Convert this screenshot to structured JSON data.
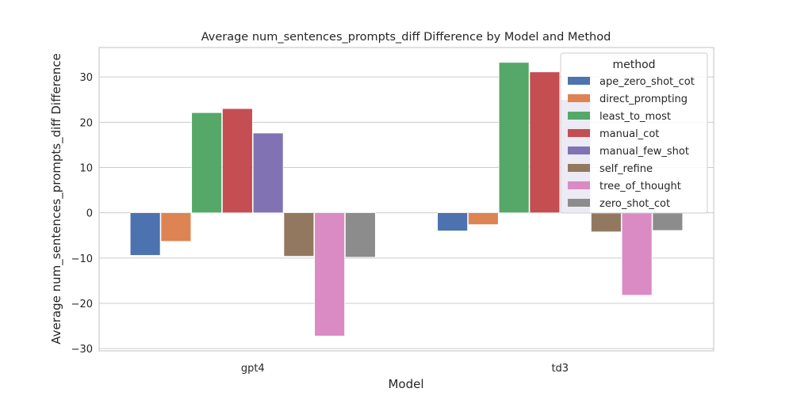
{
  "chart_data": {
    "type": "bar",
    "title": "Average num_sentences_prompts_diff Difference by Model and Method",
    "xlabel": "Model",
    "ylabel": "Average num_sentences_prompts_diff Difference",
    "categories": [
      "gpt4",
      "td3"
    ],
    "ylim": [
      -30.5,
      36.5
    ],
    "yticks": [
      -30,
      -20,
      -10,
      0,
      10,
      20,
      30
    ],
    "grid": true,
    "legend": {
      "title": "method",
      "placement": "top-right"
    },
    "series": [
      {
        "name": "ape_zero_shot_cot",
        "color": "#4c72b0",
        "values": [
          -9.4,
          -4.0
        ]
      },
      {
        "name": "direct_prompting",
        "color": "#dd8452",
        "values": [
          -6.3,
          -2.6
        ]
      },
      {
        "name": "least_to_most",
        "color": "#55a868",
        "values": [
          22.1,
          33.2
        ]
      },
      {
        "name": "manual_cot",
        "color": "#c44e52",
        "values": [
          23.0,
          31.1
        ]
      },
      {
        "name": "manual_few_shot",
        "color": "#8172b3",
        "values": [
          17.6,
          25.0
        ]
      },
      {
        "name": "self_refine",
        "color": "#937860",
        "values": [
          -9.6,
          -4.2
        ]
      },
      {
        "name": "tree_of_thought",
        "color": "#da8bc3",
        "values": [
          -27.2,
          -18.2
        ]
      },
      {
        "name": "zero_shot_cot",
        "color": "#8c8c8c",
        "values": [
          -9.8,
          -3.9
        ]
      }
    ]
  }
}
